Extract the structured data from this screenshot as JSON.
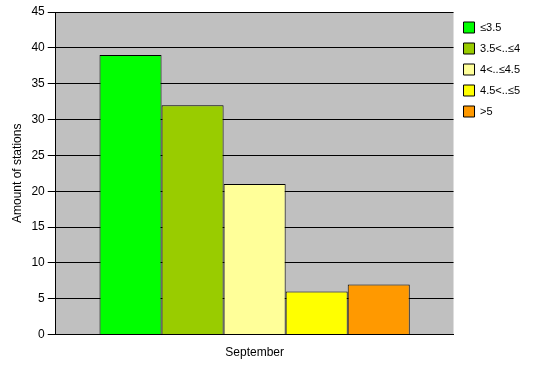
{
  "chart_data": {
    "type": "bar",
    "ylabel": "Amount of stations",
    "categories": [
      "September"
    ],
    "series": [
      {
        "name": "≤3.5",
        "color": "#00ff00",
        "values": [
          39
        ]
      },
      {
        "name": "3.5<..≤4",
        "color": "#99cc00",
        "values": [
          32
        ]
      },
      {
        "name": "4<..≤4.5",
        "color": "#ffff99",
        "values": [
          21
        ]
      },
      {
        "name": "4.5<..≤5",
        "color": "#ffff00",
        "values": [
          6
        ]
      },
      {
        "name": ">5",
        "color": "#ff9900",
        "values": [
          7
        ]
      }
    ],
    "ylim": [
      0,
      45
    ],
    "yticks": [
      0,
      5,
      10,
      15,
      20,
      25,
      30,
      35,
      40,
      45
    ],
    "grid": true,
    "legend": "top-right"
  }
}
